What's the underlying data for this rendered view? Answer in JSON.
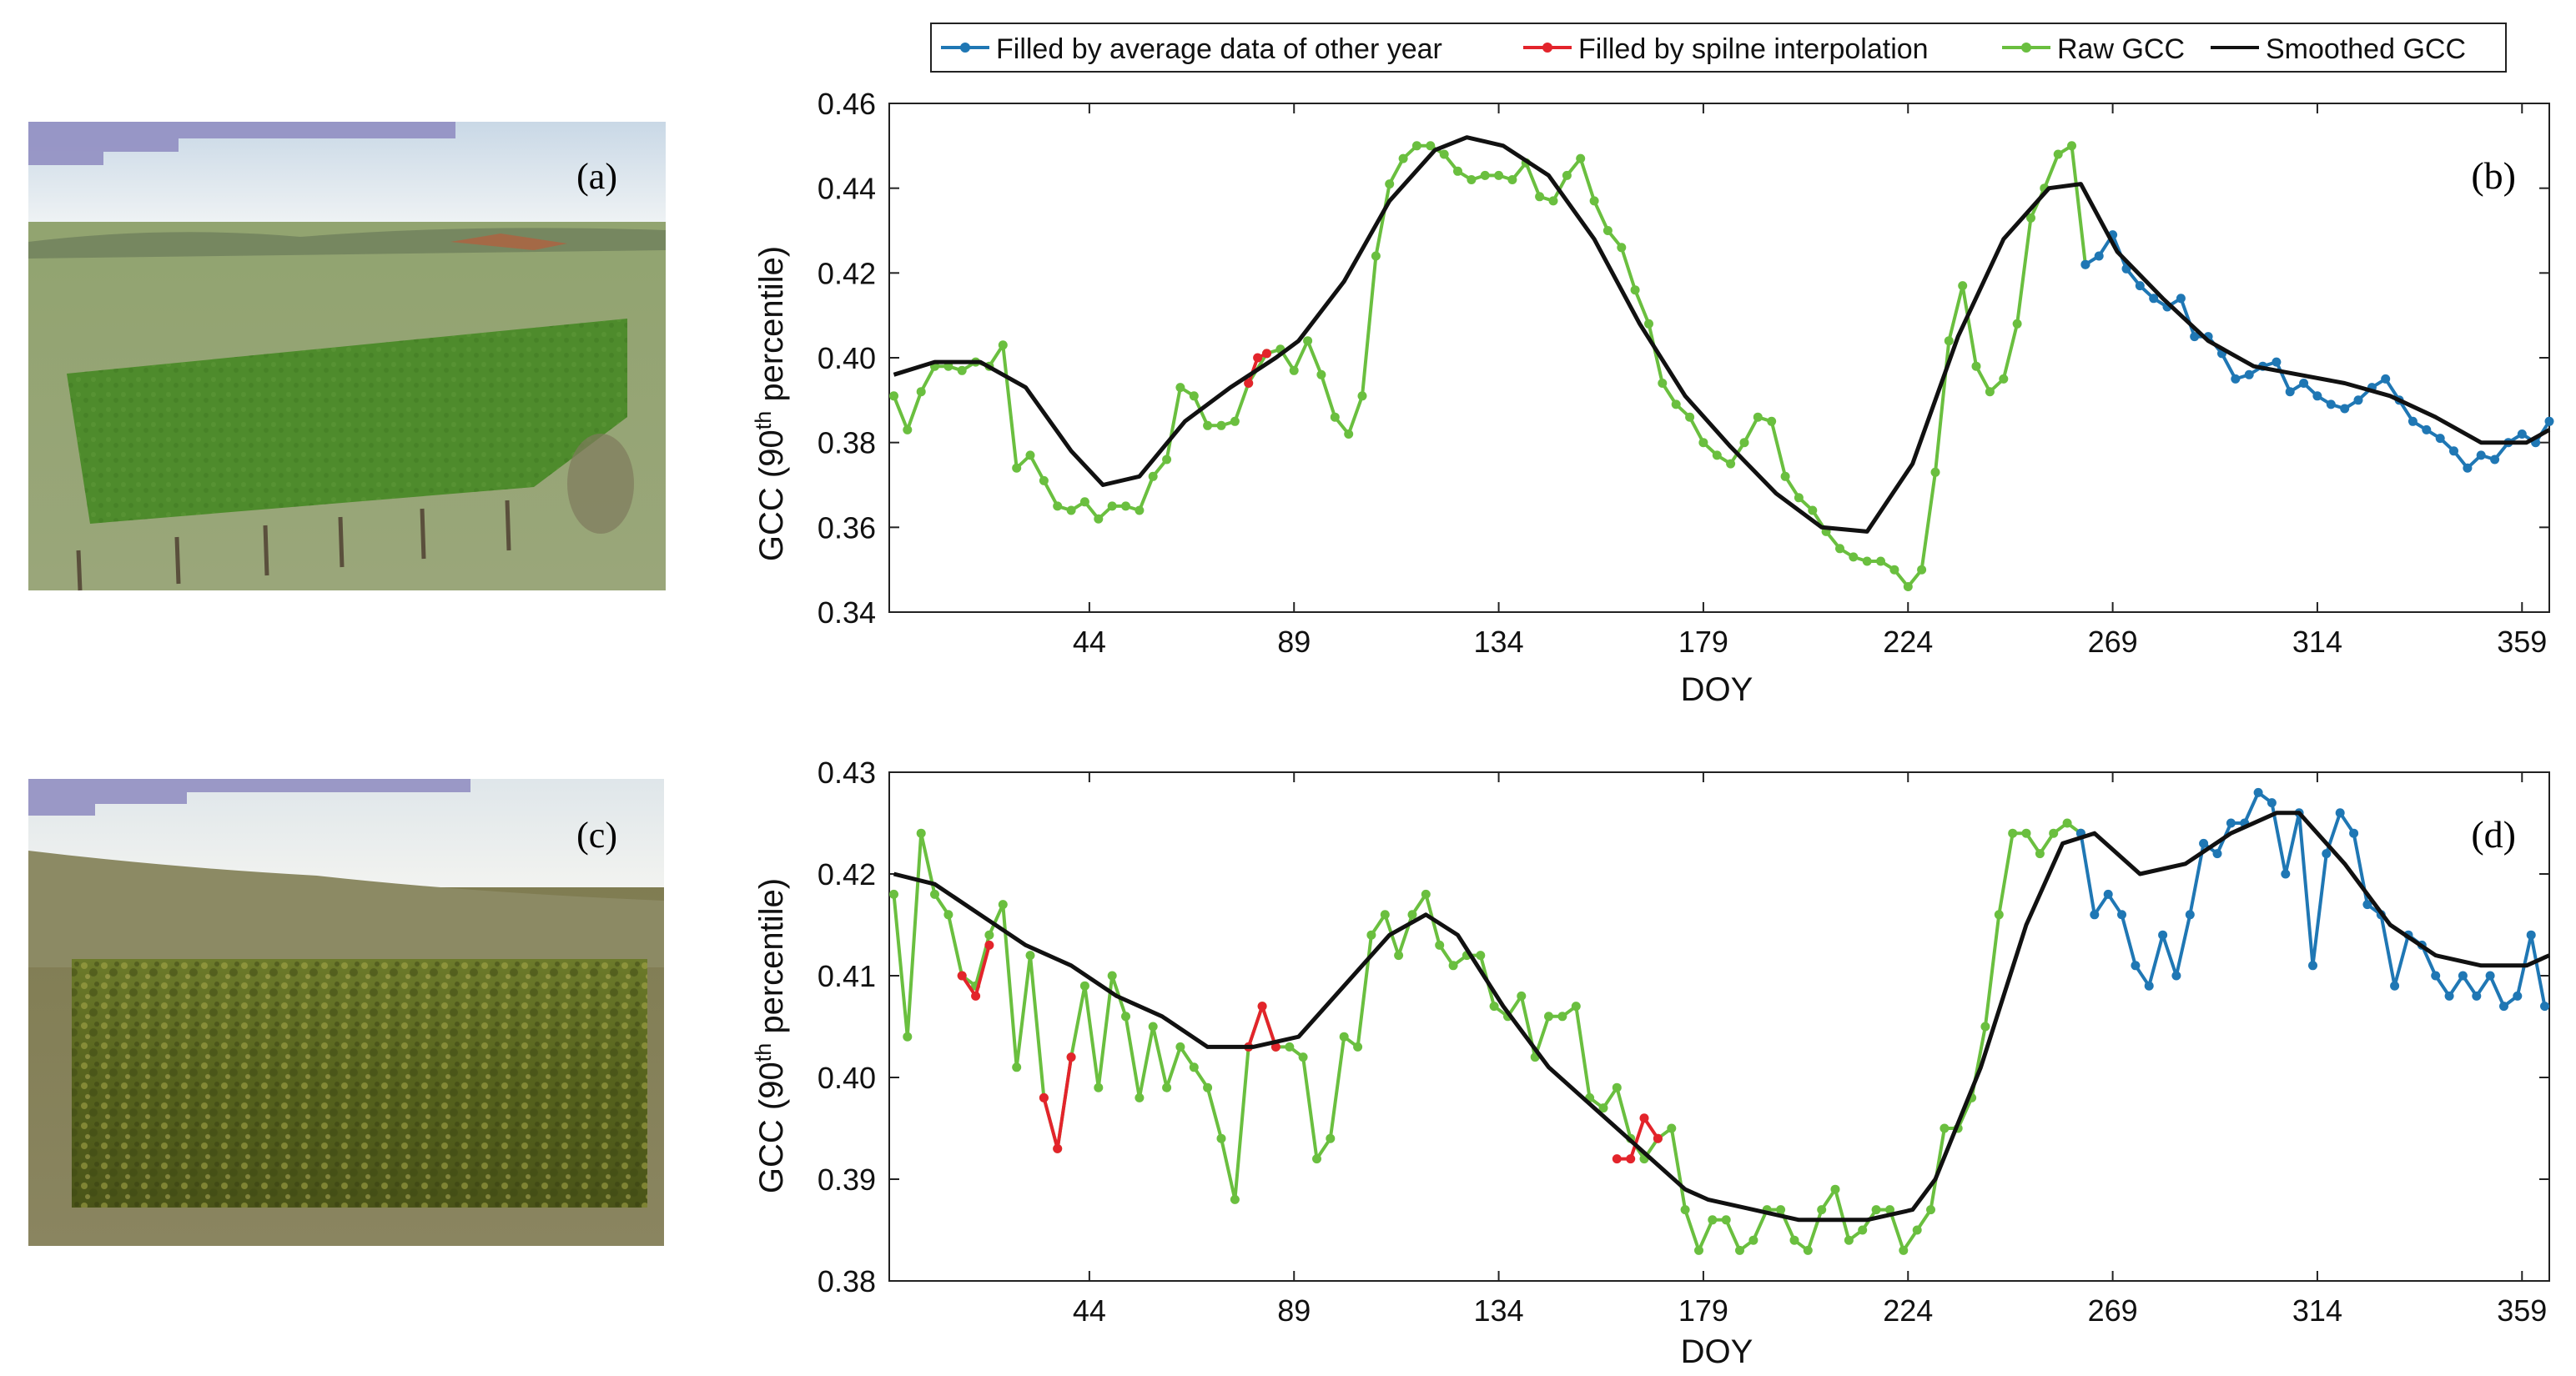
{
  "legend": {
    "entries": [
      {
        "label": "Filled by average data of other year",
        "color": "#1f77b4"
      },
      {
        "label": "Filled by spilne interpolation",
        "color": "#e3242b"
      },
      {
        "label": "Raw GCC",
        "color": "#6abf3f"
      },
      {
        "label": "Smoothed GCC",
        "color": "#111111"
      }
    ]
  },
  "photos": {
    "a": {
      "label": "(a)"
    },
    "c": {
      "label": "(c)"
    }
  },
  "chart_data": [
    {
      "type": "line",
      "panel_label": "(b)",
      "xlabel": "DOY",
      "ylabel_prefix": "GCC (90",
      "ylabel_sup": "th",
      "ylabel_suffix": " percentile)",
      "xlim": [
        0,
        365
      ],
      "ylim": [
        0.34,
        0.46
      ],
      "xticks": [
        44,
        89,
        134,
        179,
        224,
        269,
        314,
        359
      ],
      "yticks": [
        0.34,
        0.36,
        0.38,
        0.4,
        0.42,
        0.44,
        0.46
      ],
      "ytick_labels": [
        "0.34",
        "0.36",
        "0.38",
        "0.40",
        "0.42",
        "0.44",
        "0.46"
      ],
      "series": [
        {
          "name": "Raw GCC",
          "color": "#6abf3f",
          "x": [
            1,
            4,
            7,
            10,
            13,
            16,
            19,
            22,
            25,
            28,
            31,
            34,
            37,
            40,
            43,
            46,
            49,
            52,
            55,
            58,
            61,
            64,
            67,
            70,
            73,
            76,
            79,
            83,
            86,
            89,
            92,
            95,
            98,
            101,
            104,
            107,
            110,
            113,
            116,
            119,
            122,
            125,
            128,
            131,
            134,
            137,
            140,
            143,
            146,
            149,
            152,
            155,
            158,
            161,
            164,
            167,
            170,
            173,
            176,
            179,
            182,
            185,
            188,
            191,
            194,
            197,
            200,
            203,
            206,
            209,
            212,
            215,
            218,
            221,
            224,
            227,
            230,
            233,
            236,
            239,
            242,
            245,
            248,
            251,
            254,
            257,
            260,
            263
          ],
          "y": [
            0.391,
            0.383,
            0.392,
            0.398,
            0.398,
            0.397,
            0.399,
            0.398,
            0.403,
            0.374,
            0.377,
            0.371,
            0.365,
            0.364,
            0.366,
            0.362,
            0.365,
            0.365,
            0.364,
            0.372,
            0.376,
            0.393,
            0.391,
            0.384,
            0.384,
            0.385,
            0.394,
            0.401,
            0.402,
            0.397,
            0.404,
            0.396,
            0.386,
            0.382,
            0.391,
            0.424,
            0.441,
            0.447,
            0.45,
            0.45,
            0.448,
            0.444,
            0.442,
            0.443,
            0.443,
            0.442,
            0.446,
            0.438,
            0.437,
            0.443,
            0.447,
            0.437,
            0.43,
            0.426,
            0.416,
            0.408,
            0.394,
            0.389,
            0.386,
            0.38,
            0.377,
            0.375,
            0.38,
            0.386,
            0.385,
            0.372,
            0.367,
            0.364,
            0.359,
            0.355,
            0.353,
            0.352,
            0.352,
            0.35,
            0.346,
            0.35,
            0.373,
            0.404,
            0.417,
            0.398,
            0.392,
            0.395,
            0.408,
            0.433,
            0.44,
            0.448,
            0.45,
            0.422
          ]
        },
        {
          "name": "Filled by spilne interpolation",
          "color": "#e3242b",
          "x": [
            79,
            81,
            83
          ],
          "y": [
            0.394,
            0.4,
            0.401
          ]
        },
        {
          "name": "Filled by average data of other year",
          "color": "#1f77b4",
          "x": [
            263,
            266,
            269,
            272,
            275,
            278,
            281,
            284,
            287,
            290,
            293,
            296,
            299,
            302,
            305,
            308,
            311,
            314,
            317,
            320,
            323,
            326,
            329,
            332,
            335,
            338,
            341,
            344,
            347,
            350,
            353,
            356,
            359,
            362,
            365
          ],
          "y": [
            0.422,
            0.424,
            0.429,
            0.421,
            0.417,
            0.414,
            0.412,
            0.414,
            0.405,
            0.405,
            0.401,
            0.395,
            0.396,
            0.398,
            0.399,
            0.392,
            0.394,
            0.391,
            0.389,
            0.388,
            0.39,
            0.393,
            0.395,
            0.39,
            0.385,
            0.383,
            0.381,
            0.378,
            0.374,
            0.377,
            0.376,
            0.38,
            0.382,
            0.38,
            0.385
          ]
        },
        {
          "name": "Smoothed GCC",
          "color": "#111111",
          "x": [
            1,
            10,
            20,
            30,
            40,
            47,
            55,
            65,
            75,
            85,
            90,
            100,
            110,
            120,
            127,
            135,
            145,
            155,
            165,
            175,
            185,
            195,
            205,
            215,
            225,
            235,
            245,
            255,
            262,
            270,
            280,
            290,
            300,
            310,
            320,
            330,
            340,
            350,
            360,
            365
          ],
          "y": [
            0.396,
            0.399,
            0.399,
            0.393,
            0.378,
            0.37,
            0.372,
            0.385,
            0.393,
            0.4,
            0.404,
            0.418,
            0.437,
            0.449,
            0.452,
            0.45,
            0.443,
            0.428,
            0.408,
            0.391,
            0.379,
            0.368,
            0.36,
            0.359,
            0.375,
            0.405,
            0.428,
            0.44,
            0.441,
            0.425,
            0.414,
            0.404,
            0.398,
            0.396,
            0.394,
            0.391,
            0.386,
            0.38,
            0.38,
            0.383
          ]
        }
      ]
    },
    {
      "type": "line",
      "panel_label": "(d)",
      "xlabel": "DOY",
      "ylabel_prefix": "GCC (90",
      "ylabel_sup": "th",
      "ylabel_suffix": " percentile)",
      "xlim": [
        0,
        365
      ],
      "ylim": [
        0.38,
        0.43
      ],
      "xticks": [
        44,
        89,
        134,
        179,
        224,
        269,
        314,
        359
      ],
      "yticks": [
        0.38,
        0.39,
        0.4,
        0.41,
        0.42,
        0.43
      ],
      "ytick_labels": [
        "0.38",
        "0.39",
        "0.40",
        "0.41",
        "0.42",
        "0.43"
      ],
      "series": [
        {
          "name": "Raw GCC",
          "color": "#6abf3f",
          "x": [
            1,
            4,
            7,
            10,
            13,
            16,
            19,
            22,
            25,
            28,
            31,
            34,
            37,
            40,
            43,
            46,
            49,
            52,
            55,
            58,
            61,
            64,
            67,
            70,
            73,
            76,
            79,
            82,
            85,
            88,
            91,
            94,
            97,
            100,
            103,
            106,
            109,
            112,
            115,
            118,
            121,
            124,
            127,
            130,
            133,
            136,
            139,
            142,
            145,
            148,
            151,
            154,
            157,
            160,
            163,
            166,
            169,
            172,
            175,
            178,
            181,
            184,
            187,
            190,
            193,
            196,
            199,
            202,
            205,
            208,
            211,
            214,
            217,
            220,
            223,
            226,
            229,
            232,
            235,
            238,
            241,
            244,
            247,
            250,
            253,
            256,
            259,
            262
          ],
          "y": [
            0.418,
            0.404,
            0.424,
            0.418,
            0.416,
            0.41,
            0.409,
            0.414,
            0.417,
            0.401,
            0.412,
            0.398,
            0.393,
            0.402,
            0.409,
            0.399,
            0.41,
            0.406,
            0.398,
            0.405,
            0.399,
            0.403,
            0.401,
            0.399,
            0.394,
            0.388,
            0.403,
            0.407,
            0.403,
            0.403,
            0.402,
            0.392,
            0.394,
            0.404,
            0.403,
            0.414,
            0.416,
            0.412,
            0.416,
            0.418,
            0.413,
            0.411,
            0.412,
            0.412,
            0.407,
            0.406,
            0.408,
            0.402,
            0.406,
            0.406,
            0.407,
            0.398,
            0.397,
            0.399,
            0.394,
            0.392,
            0.394,
            0.395,
            0.387,
            0.383,
            0.386,
            0.386,
            0.383,
            0.384,
            0.387,
            0.387,
            0.384,
            0.383,
            0.387,
            0.389,
            0.384,
            0.385,
            0.387,
            0.387,
            0.383,
            0.385,
            0.387,
            0.395,
            0.395,
            0.398,
            0.405,
            0.416,
            0.424,
            0.424,
            0.422,
            0.424,
            0.425,
            0.424
          ]
        },
        {
          "name": "Filled by spilne interpolation",
          "color": "#e3242b",
          "x": [
            16,
            19,
            22,
            34,
            37,
            40,
            79,
            82,
            85,
            160,
            163,
            166,
            169
          ],
          "y": [
            0.41,
            0.408,
            0.413,
            0.398,
            0.393,
            0.402,
            0.403,
            0.407,
            0.403,
            0.392,
            0.392,
            0.396,
            0.394
          ]
        },
        {
          "name": "Filled by average data of other year",
          "color": "#1f77b4",
          "x": [
            262,
            265,
            268,
            271,
            274,
            277,
            280,
            283,
            286,
            289,
            292,
            295,
            298,
            301,
            304,
            307,
            310,
            313,
            316,
            319,
            322,
            325,
            328,
            331,
            334,
            337,
            340,
            343,
            346,
            349,
            352,
            355,
            358,
            361,
            364
          ],
          "y": [
            0.424,
            0.416,
            0.418,
            0.416,
            0.411,
            0.409,
            0.414,
            0.41,
            0.416,
            0.423,
            0.422,
            0.425,
            0.425,
            0.428,
            0.427,
            0.42,
            0.426,
            0.411,
            0.422,
            0.426,
            0.424,
            0.417,
            0.416,
            0.409,
            0.414,
            0.413,
            0.41,
            0.408,
            0.41,
            0.408,
            0.41,
            0.407,
            0.408,
            0.414,
            0.407
          ]
        },
        {
          "name": "Smoothed GCC",
          "color": "#111111",
          "x": [
            1,
            10,
            20,
            30,
            40,
            50,
            60,
            70,
            75,
            80,
            90,
            100,
            110,
            118,
            125,
            135,
            145,
            155,
            165,
            175,
            180,
            190,
            200,
            210,
            215,
            225,
            230,
            240,
            250,
            258,
            265,
            275,
            285,
            295,
            305,
            310,
            320,
            330,
            340,
            350,
            360,
            365
          ],
          "y": [
            0.42,
            0.419,
            0.416,
            0.413,
            0.411,
            0.408,
            0.406,
            0.403,
            0.403,
            0.403,
            0.404,
            0.409,
            0.414,
            0.416,
            0.414,
            0.407,
            0.401,
            0.397,
            0.393,
            0.389,
            0.388,
            0.387,
            0.386,
            0.386,
            0.386,
            0.387,
            0.39,
            0.401,
            0.415,
            0.423,
            0.424,
            0.42,
            0.421,
            0.424,
            0.426,
            0.426,
            0.421,
            0.415,
            0.412,
            0.411,
            0.411,
            0.412
          ]
        }
      ]
    }
  ]
}
